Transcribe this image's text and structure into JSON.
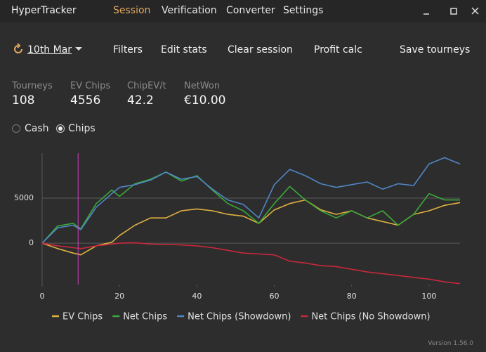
{
  "app": {
    "title": "HyperTracker",
    "tabs": [
      "Session",
      "Verification",
      "Converter",
      "Settings"
    ],
    "date": "10th Mar",
    "toolbar": [
      "Filters",
      "Edit stats",
      "Clear session",
      "Profit calc",
      "Save tourneys"
    ],
    "stats": [
      {
        "label": "Tourneys",
        "value": "108"
      },
      {
        "label": "EV Chips",
        "value": "4556"
      },
      {
        "label": "ChipEV/t",
        "value": "42.2"
      },
      {
        "label": "NetWon",
        "value": "€10.00"
      }
    ],
    "modes": [
      "Cash",
      "Chips"
    ],
    "version": "Version 1.56.0"
  },
  "chart_data": {
    "type": "line",
    "x": [
      0,
      4,
      8,
      10,
      14,
      18,
      20,
      24,
      28,
      32,
      36,
      40,
      44,
      48,
      52,
      56,
      60,
      64,
      68,
      72,
      76,
      80,
      84,
      88,
      92,
      96,
      100,
      104,
      108
    ],
    "series": [
      {
        "name": "EV Chips",
        "color": "#e0b040",
        "values": [
          0,
          -600,
          -1100,
          -1300,
          -300,
          100,
          850,
          2000,
          2800,
          2800,
          3600,
          3800,
          3600,
          3200,
          3000,
          2200,
          3700,
          4400,
          4800,
          3700,
          3200,
          3600,
          2800,
          2400,
          2000,
          3200,
          3600,
          4200,
          4500
        ]
      },
      {
        "name": "Net Chips",
        "color": "#3aa83a",
        "values": [
          0,
          1900,
          2200,
          1600,
          4400,
          5900,
          5200,
          6600,
          7100,
          7900,
          6900,
          7500,
          5900,
          4400,
          3600,
          2200,
          4400,
          6300,
          4800,
          3600,
          2800,
          3600,
          2800,
          3600,
          2000,
          3200,
          5500,
          4800,
          4800
        ]
      },
      {
        "name": "Net Chips (Showdown)",
        "color": "#4f86c6",
        "values": [
          0,
          1700,
          2000,
          1500,
          4000,
          5500,
          6200,
          6500,
          7000,
          7900,
          7100,
          7400,
          6000,
          4800,
          4300,
          2800,
          6500,
          8200,
          7500,
          6600,
          6200,
          6500,
          6800,
          6000,
          6600,
          6400,
          8800,
          9500,
          8800
        ]
      },
      {
        "name": "Net Chips (No Showdown)",
        "color": "#c8283c",
        "values": [
          0,
          -300,
          -500,
          -600,
          -300,
          -100,
          0,
          50,
          -100,
          -150,
          -200,
          -300,
          -500,
          -800,
          -1100,
          -1200,
          -1300,
          -2000,
          -2200,
          -2500,
          -2600,
          -2900,
          -3200,
          -3400,
          -3600,
          -3800,
          -4000,
          -4300,
          -4500
        ]
      }
    ],
    "cursor_x": 9.3,
    "cursor_color": "#d040c0",
    "xlim": [
      0,
      108
    ],
    "ylim": [
      -4600,
      10000
    ],
    "xticks": [
      0,
      20,
      40,
      60,
      80,
      100
    ],
    "yticks": [
      0,
      5000
    ],
    "grid": true
  }
}
